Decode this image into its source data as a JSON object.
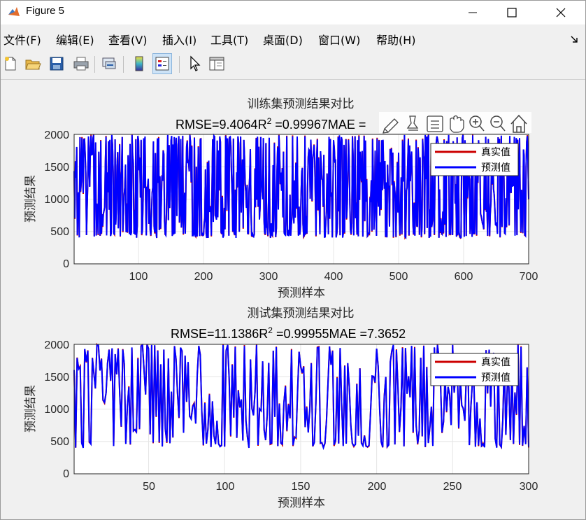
{
  "window": {
    "title": "Figure 5"
  },
  "menu": [
    "文件(F)",
    "编辑(E)",
    "查看(V)",
    "插入(I)",
    "工具(T)",
    "桌面(D)",
    "窗口(W)",
    "帮助(H)"
  ],
  "toolbar": [
    "new-figure",
    "open-file",
    "save",
    "print",
    "link-plot",
    "insert-colorbar",
    "insert-legend",
    "edit-plot",
    "property-inspector"
  ],
  "colors": {
    "true_line": "#cc0000",
    "pred_line": "#0000ff",
    "axes_bg": "#ffffff",
    "grid": "#e6e6e6"
  },
  "axes_toolbar_icons": [
    "brush-icon",
    "data-tips-icon",
    "save-figure-icon",
    "pan-icon",
    "zoom-in-icon",
    "zoom-out-icon",
    "home-icon"
  ],
  "plots": [
    {
      "title": "训练集预测结果对比",
      "subtitle_rmse": "RMSE=9.4064R",
      "subtitle_sup": "2",
      "subtitle_rest": " =0.99967MAE =",
      "xlabel": "预测样本",
      "ylabel": "预测结果",
      "xticks": [
        "100",
        "200",
        "300",
        "400",
        "500",
        "600",
        "700"
      ],
      "yticks": [
        "0",
        "500",
        "1000",
        "1500",
        "2000"
      ],
      "legend": [
        "真实值",
        "预测值"
      ]
    },
    {
      "title": "测试集预测结果对比",
      "subtitle_rmse": "RMSE=11.1386R",
      "subtitle_sup": "2",
      "subtitle_rest": " =0.99955MAE =7.3652",
      "xlabel": "预测样本",
      "ylabel": "预测结果",
      "xticks": [
        "50",
        "100",
        "150",
        "200",
        "250",
        "300"
      ],
      "yticks": [
        "0",
        "500",
        "1000",
        "1500",
        "2000"
      ],
      "legend": [
        "真实值",
        "预测值"
      ]
    }
  ],
  "chart_data": [
    {
      "type": "line",
      "title": "训练集预测结果对比",
      "xlabel": "预测样本",
      "ylabel": "预测结果",
      "xlim": [
        1,
        700
      ],
      "ylim": [
        0,
        2000
      ],
      "grid": true,
      "legend_position": "top-right",
      "series": [
        {
          "name": "真实值",
          "values_note": "700 samples oscillating between ~400 and ~2000"
        },
        {
          "name": "预测值",
          "values_note": "700 samples tracking 真实值 closely"
        }
      ]
    },
    {
      "type": "line",
      "title": "测试集预测结果对比",
      "xlabel": "预测样本",
      "ylabel": "预测结果",
      "xlim": [
        1,
        300
      ],
      "ylim": [
        0,
        2000
      ],
      "grid": true,
      "legend_position": "top-right",
      "series": [
        {
          "name": "真实值",
          "values_note": "300 samples oscillating between ~400 and ~2000"
        },
        {
          "name": "预测值",
          "values_note": "300 samples tracking 真实值 closely"
        }
      ]
    }
  ]
}
